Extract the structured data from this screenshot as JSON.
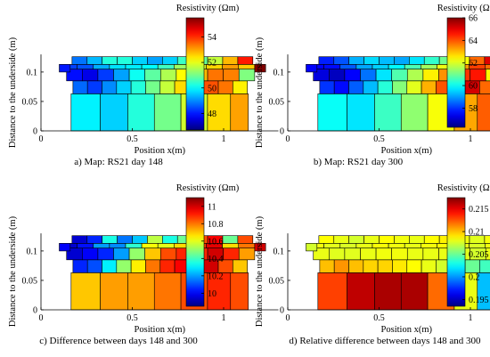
{
  "figure": {
    "ylabel": "Distance to the underside (m)",
    "xlabel": "Position x(m)",
    "colorbar_title": "Resistivity (Ωm)",
    "x_ticks": [
      "0",
      "0.5",
      "1"
    ],
    "y_ticks": [
      "0",
      "0.05",
      "0.1"
    ]
  },
  "chart_data": [
    {
      "type": "heatmap",
      "caption": "a) Map: RS21 day 148",
      "colorbar": {
        "min": 46.7,
        "max": 55.5,
        "ticks": [
          48,
          50,
          52,
          54
        ],
        "tick_labels": [
          "48",
          "50",
          "52",
          "54"
        ]
      },
      "xlabel": "Position x(m)",
      "ylabel": "Distance to the underside (m)",
      "xlim": [
        0,
        1.3
      ],
      "ylim": [
        0,
        0.13
      ],
      "layers": {
        "top": [
          48.8,
          49.4,
          50.3,
          50.3,
          49.6,
          49.2,
          49.6,
          50.5,
          50.9,
          51.7,
          52.8,
          54.2
        ],
        "middle": [
          47.9,
          47.6,
          48.3,
          49.2,
          50.1,
          50.8,
          51.5,
          52.2,
          52.8,
          53.4,
          53.3,
          51.1
        ],
        "bottom": [
          49.9,
          49.6,
          50.3,
          51.0,
          51.8,
          52.5,
          53.0
        ],
        "bottom_strip": [
          48.7,
          48.3,
          49.0,
          49.6,
          50.3,
          51.0,
          51.7,
          52.5,
          53.2,
          53.7,
          53.4,
          52.3
        ],
        "left_end": 48.0,
        "right_end": 55.5
      }
    },
    {
      "type": "heatmap",
      "caption": "b) Map: RS21 day 300",
      "colorbar": {
        "min": 56.3,
        "max": 66.0,
        "ticks": [
          58,
          60,
          62,
          64,
          66
        ],
        "tick_labels": [
          "58",
          "60",
          "62",
          "64",
          "66"
        ]
      },
      "xlabel": "Position x(m)",
      "ylabel": "Distance to the underside (m)",
      "xlim": [
        0,
        1.3
      ],
      "ylim": [
        0,
        0.13
      ],
      "layers": {
        "top": [
          57.8,
          58.3,
          59.2,
          59.6,
          59.3,
          59.1,
          59.7,
          60.4,
          61.0,
          62.3,
          63.8,
          65.1
        ],
        "middle": [
          57.2,
          56.9,
          57.5,
          58.6,
          59.7,
          60.7,
          61.6,
          62.5,
          63.4,
          64.3,
          64.6,
          62.4
        ],
        "bottom": [
          60.0,
          59.7,
          60.5,
          61.3,
          62.3,
          63.2,
          63.9
        ],
        "bottom_strip": [
          58.0,
          57.6,
          58.4,
          59.3,
          60.3,
          61.2,
          62.1,
          63.1,
          64.0,
          64.8,
          65.2,
          63.8
        ],
        "left_end": 57.5,
        "right_end": 66.0
      }
    },
    {
      "type": "heatmap",
      "caption": "c) Difference between days 148 and 300",
      "colorbar": {
        "min": 9.85,
        "max": 11.1,
        "ticks": [
          10.0,
          10.2,
          10.4,
          10.6,
          10.8,
          11.0
        ],
        "tick_labels": [
          "10",
          "10.2",
          "10.4",
          "10.6",
          "10.8",
          "11"
        ]
      },
      "xlabel": "Position x(m)",
      "ylabel": "Distance to the underside (m)",
      "xlim": [
        0,
        1.3
      ],
      "ylim": [
        0,
        0.13
      ],
      "layers": {
        "top": [
          9.95,
          10.05,
          10.35,
          10.15,
          10.25,
          10.55,
          10.35,
          10.45,
          10.85,
          10.95,
          10.45,
          10.85
        ],
        "middle": [
          9.95,
          10.0,
          10.05,
          10.2,
          10.5,
          10.7,
          10.85,
          10.9,
          10.9,
          11.0,
          10.9,
          10.75
        ],
        "bottom": [
          10.7,
          10.75,
          10.75,
          10.8,
          10.85,
          10.9,
          10.85
        ],
        "bottom_strip": [
          10.05,
          10.1,
          10.3,
          10.5,
          10.65,
          10.8,
          10.9,
          10.95,
          10.95,
          11.0,
          10.85,
          10.7
        ],
        "left_end": 10.0,
        "right_end": 11.0
      }
    },
    {
      "type": "heatmap",
      "caption": "d) Relative difference between days 148 and 300",
      "colorbar": {
        "min": 0.1935,
        "max": 0.2175,
        "ticks": [
          0.195,
          0.2,
          0.205,
          0.21,
          0.215
        ],
        "tick_labels": [
          "0.195",
          "0.2",
          "0.205",
          "0.21",
          "0.215"
        ]
      },
      "xlabel": "Position x(m)",
      "ylabel": "Distance to the underside (m)",
      "xlim": [
        0,
        1.3
      ],
      "ylim": [
        0,
        0.13
      ],
      "layers": {
        "top": [
          0.2085,
          0.208,
          0.2075,
          0.208,
          0.2085,
          0.2082,
          0.208,
          0.2085,
          0.2088,
          0.2082,
          0.2078,
          0.2083
        ],
        "middle": [
          0.208,
          0.2078,
          0.2078,
          0.208,
          0.2082,
          0.2082,
          0.208,
          0.208,
          0.208,
          0.2078,
          0.2075,
          0.208
        ],
        "bottom": [
          0.213,
          0.216,
          0.2165,
          0.2165,
          0.212,
          0.208,
          0.201
        ],
        "bottom_strip": [
          0.21,
          0.211,
          0.21,
          0.2095,
          0.2095,
          0.209,
          0.2085,
          0.208,
          0.2075,
          0.2065,
          0.205,
          0.204
        ],
        "left_end": 0.2075,
        "right_end": 0.209
      }
    }
  ]
}
